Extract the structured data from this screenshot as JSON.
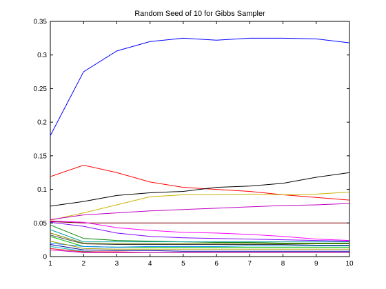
{
  "chart_data": {
    "type": "line",
    "title": "Random Seed of 10 for Gibbs Sampler",
    "xlabel": "",
    "ylabel": "",
    "xlim": [
      1,
      10
    ],
    "ylim": [
      0,
      0.35
    ],
    "x": [
      1,
      2,
      3,
      4,
      5,
      6,
      7,
      8,
      9,
      10
    ],
    "xticks": [
      "1",
      "2",
      "3",
      "4",
      "5",
      "6",
      "7",
      "8",
      "9",
      "10"
    ],
    "yticks": [
      "0",
      "0.05",
      "0.1",
      "0.15",
      "0.2",
      "0.25",
      "0.3",
      "0.35"
    ],
    "yticks_values": [
      0,
      0.05,
      0.1,
      0.15,
      0.2,
      0.25,
      0.3,
      0.35
    ],
    "grid": false,
    "legend": "none",
    "series": [
      {
        "color": "#0000ff",
        "values": [
          0.18,
          0.275,
          0.306,
          0.32,
          0.325,
          0.322,
          0.325,
          0.325,
          0.324,
          0.318
        ]
      },
      {
        "color": "#ff0000",
        "values": [
          0.119,
          0.136,
          0.125,
          0.111,
          0.103,
          0.1,
          0.097,
          0.092,
          0.088,
          0.084
        ]
      },
      {
        "color": "#000000",
        "values": [
          0.075,
          0.082,
          0.091,
          0.095,
          0.097,
          0.103,
          0.105,
          0.109,
          0.118,
          0.125
        ]
      },
      {
        "color": "#c8b400",
        "values": [
          0.054,
          0.065,
          0.077,
          0.089,
          0.092,
          0.092,
          0.093,
          0.092,
          0.093,
          0.096
        ]
      },
      {
        "color": "#c000c0",
        "values": [
          0.055,
          0.062,
          0.065,
          0.068,
          0.07,
          0.072,
          0.074,
          0.076,
          0.077,
          0.079
        ]
      },
      {
        "color": "#800000",
        "values": [
          0.052,
          0.05,
          0.05,
          0.05,
          0.05,
          0.05,
          0.05,
          0.05,
          0.05,
          0.05
        ]
      },
      {
        "color": "#ff00ff",
        "values": [
          0.053,
          0.051,
          0.043,
          0.039,
          0.036,
          0.035,
          0.033,
          0.03,
          0.026,
          0.024
        ]
      },
      {
        "color": "#8000ff",
        "values": [
          0.051,
          0.045,
          0.035,
          0.03,
          0.028,
          0.027,
          0.026,
          0.025,
          0.024,
          0.023
        ]
      },
      {
        "color": "#008000",
        "values": [
          0.047,
          0.027,
          0.024,
          0.023,
          0.022,
          0.021,
          0.021,
          0.02,
          0.02,
          0.02
        ]
      },
      {
        "color": "#00a0a0",
        "values": [
          0.04,
          0.022,
          0.022,
          0.022,
          0.022,
          0.022,
          0.022,
          0.022,
          0.022,
          0.022
        ]
      },
      {
        "color": "#808000",
        "values": [
          0.035,
          0.02,
          0.019,
          0.019,
          0.019,
          0.019,
          0.019,
          0.019,
          0.019,
          0.019
        ]
      },
      {
        "color": "#404040",
        "values": [
          0.032,
          0.019,
          0.018,
          0.018,
          0.018,
          0.018,
          0.018,
          0.018,
          0.017,
          0.017
        ]
      },
      {
        "color": "#00c000",
        "values": [
          0.03,
          0.015,
          0.014,
          0.014,
          0.014,
          0.014,
          0.014,
          0.014,
          0.014,
          0.014
        ]
      },
      {
        "color": "#0080ff",
        "values": [
          0.02,
          0.015,
          0.014,
          0.015,
          0.015,
          0.015,
          0.016,
          0.016,
          0.016,
          0.016
        ]
      },
      {
        "color": "#a0a000",
        "values": [
          0.023,
          0.012,
          0.011,
          0.011,
          0.011,
          0.011,
          0.011,
          0.011,
          0.011,
          0.011
        ]
      },
      {
        "color": "#0000a0",
        "values": [
          0.018,
          0.01,
          0.009,
          0.009,
          0.008,
          0.008,
          0.008,
          0.008,
          0.008,
          0.008
        ]
      },
      {
        "color": "#00c0c0",
        "values": [
          0.015,
          0.008,
          0.006,
          0.006,
          0.006,
          0.006,
          0.006,
          0.006,
          0.006,
          0.006
        ]
      },
      {
        "color": "#ff0000",
        "values": [
          0.012,
          0.007,
          0.007,
          0.006,
          0.006,
          0.006,
          0.006,
          0.006,
          0.006,
          0.006
        ]
      },
      {
        "color": "#c000c0",
        "values": [
          0.01,
          0.006,
          0.006,
          0.006,
          0.006,
          0.006,
          0.006,
          0.006,
          0.006,
          0.006
        ]
      }
    ]
  }
}
